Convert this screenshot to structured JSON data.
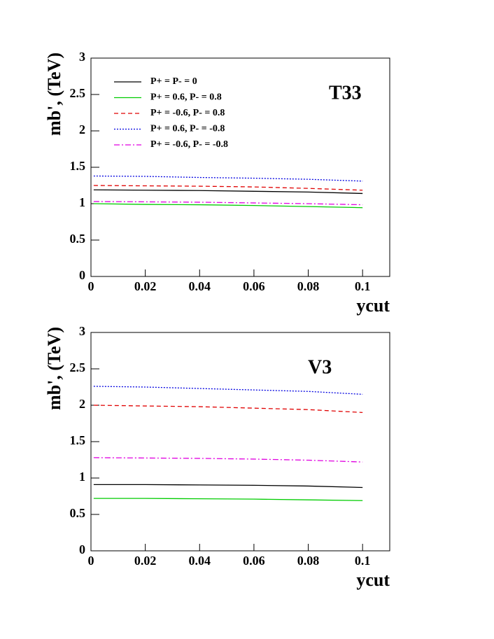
{
  "chart_data": [
    {
      "type": "line",
      "ylabel": "mb', (TeV)",
      "xlabel": "ycut",
      "annotation": "T33",
      "legend": "upper left",
      "x": [
        0.001,
        0.02,
        0.04,
        0.06,
        0.08,
        0.1
      ],
      "xlim": [
        0,
        0.11
      ],
      "ylim": [
        0,
        3
      ],
      "xticks": [
        0,
        0.02,
        0.04,
        0.06,
        0.08,
        0.1
      ],
      "yticks": [
        0,
        0.5,
        1,
        1.5,
        2,
        2.5,
        3
      ],
      "series": [
        {
          "name": "P+ = P- = 0",
          "color": "#000000",
          "line_style": "solid",
          "values": [
            1.19,
            1.185,
            1.18,
            1.17,
            1.16,
            1.14
          ]
        },
        {
          "name": "P+ = 0.6,  P- = 0.8",
          "color": "#00cc00",
          "line_style": "solid",
          "values": [
            1.0,
            0.99,
            0.985,
            0.975,
            0.96,
            0.945
          ]
        },
        {
          "name": "P+ = -0.6,  P- = 0.8",
          "color": "#e00000",
          "line_style": "dashed",
          "values": [
            1.25,
            1.245,
            1.24,
            1.23,
            1.21,
            1.185
          ]
        },
        {
          "name": "P+ = 0.6,  P- = -0.8",
          "color": "#0000e0",
          "line_style": "dotted",
          "values": [
            1.38,
            1.375,
            1.36,
            1.35,
            1.335,
            1.31
          ]
        },
        {
          "name": "P+ = -0.6,  P- = -0.8",
          "color": "#e000e0",
          "line_style": "dashdot",
          "values": [
            1.03,
            1.025,
            1.02,
            1.01,
            1.0,
            0.985
          ]
        }
      ]
    },
    {
      "type": "line",
      "ylabel": "mb', (TeV)",
      "xlabel": "ycut",
      "annotation": "V3",
      "x": [
        0.001,
        0.02,
        0.04,
        0.06,
        0.08,
        0.1
      ],
      "xlim": [
        0,
        0.11
      ],
      "ylim": [
        0,
        3
      ],
      "xticks": [
        0,
        0.02,
        0.04,
        0.06,
        0.08,
        0.1
      ],
      "yticks": [
        0,
        0.5,
        1,
        1.5,
        2,
        2.5,
        3
      ],
      "series": [
        {
          "color": "#000000",
          "line_style": "solid",
          "values": [
            0.91,
            0.91,
            0.905,
            0.9,
            0.89,
            0.87
          ]
        },
        {
          "color": "#00cc00",
          "line_style": "solid",
          "values": [
            0.72,
            0.72,
            0.715,
            0.71,
            0.7,
            0.69
          ]
        },
        {
          "color": "#e00000",
          "line_style": "dashed",
          "values": [
            2.0,
            1.99,
            1.98,
            1.96,
            1.94,
            1.9
          ]
        },
        {
          "color": "#0000e0",
          "line_style": "dotted",
          "values": [
            2.26,
            2.25,
            2.23,
            2.21,
            2.19,
            2.15
          ]
        },
        {
          "color": "#e000e0",
          "line_style": "dashdot",
          "values": [
            1.28,
            1.275,
            1.27,
            1.26,
            1.245,
            1.22
          ]
        }
      ]
    }
  ]
}
